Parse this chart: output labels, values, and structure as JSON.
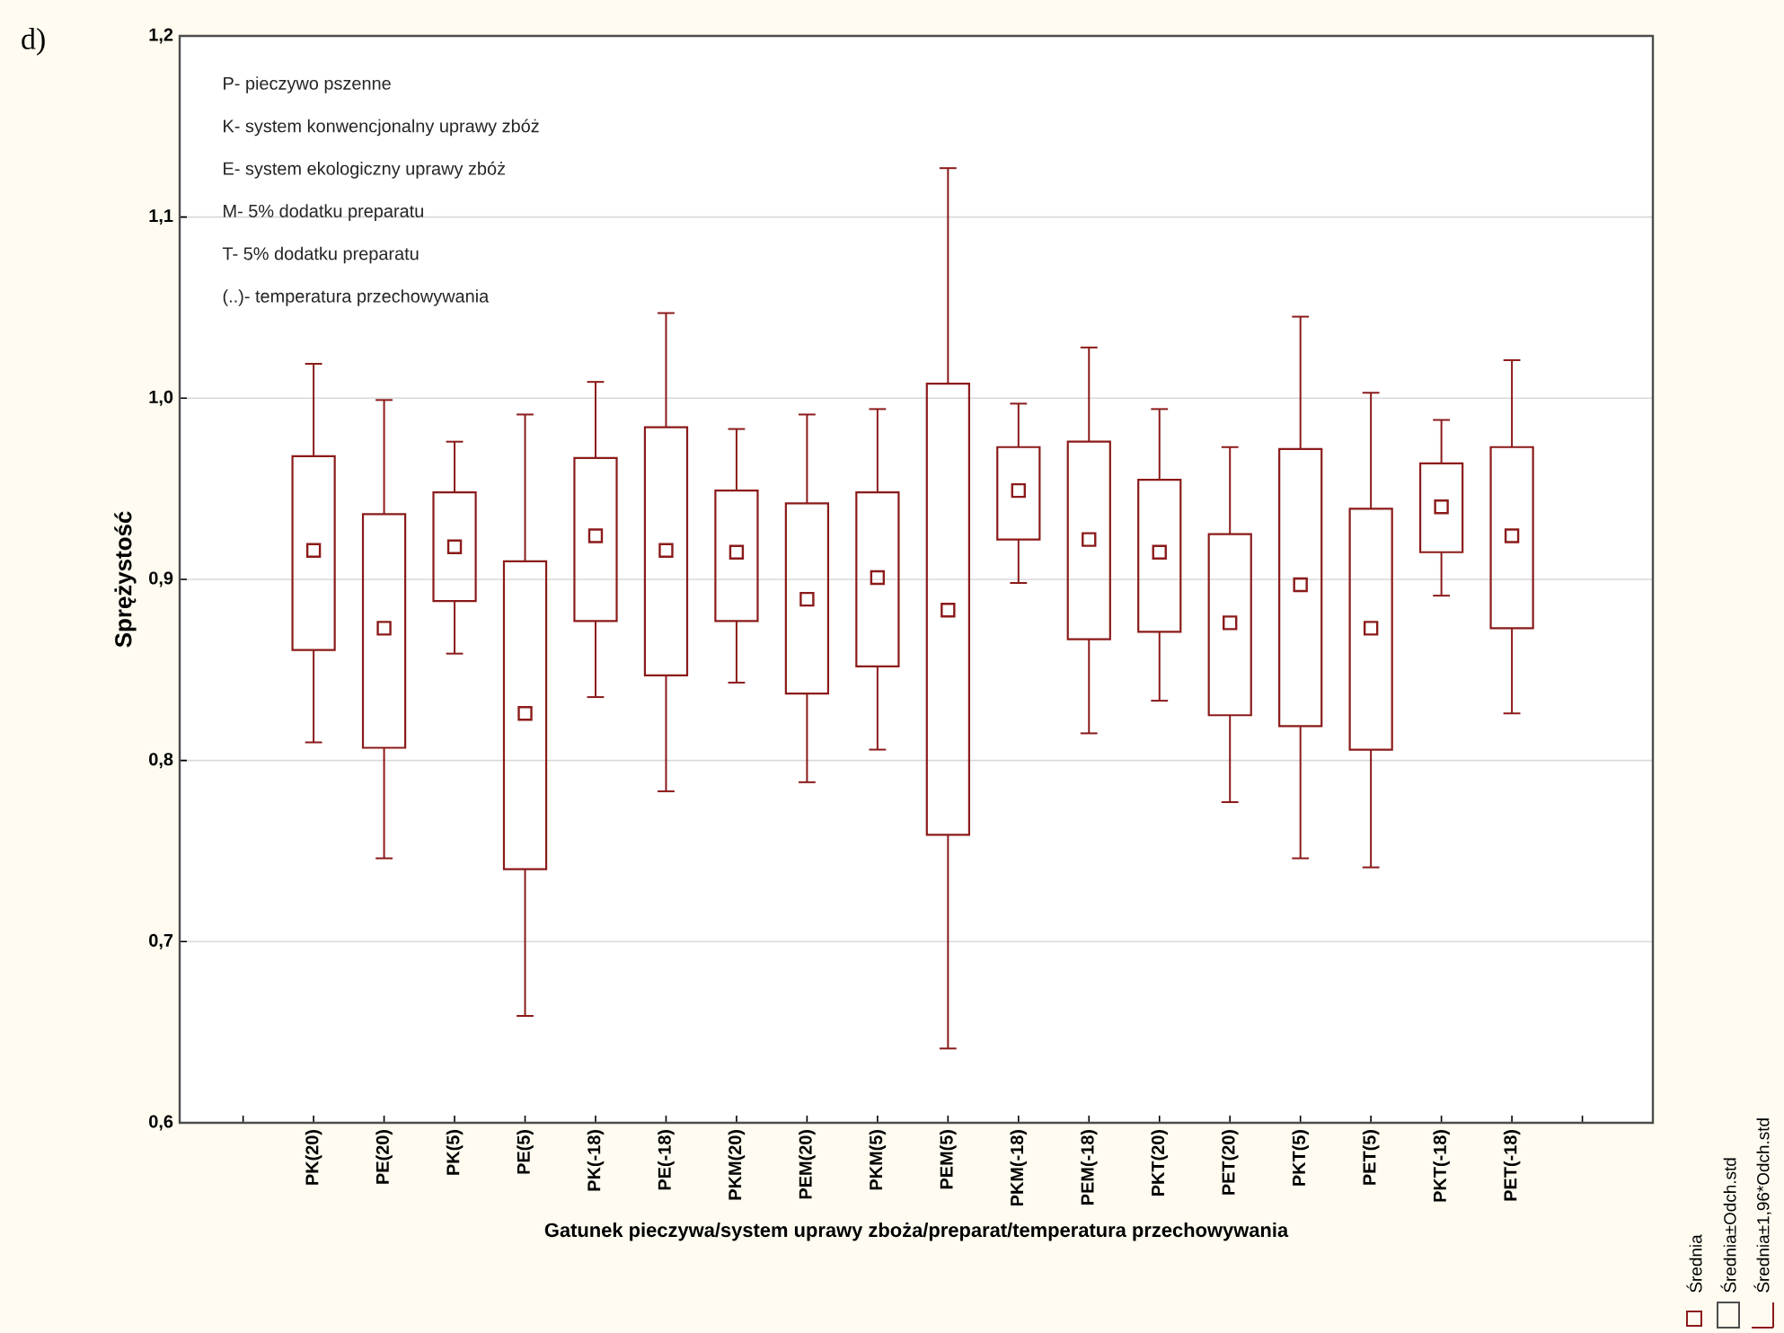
{
  "chart_data": {
    "type": "box",
    "xlabel": "Gatunek pieczywa/system uprawy zboża/preparat/temperatura przechowywania",
    "ylabel": "Sprężystość",
    "categories": [
      "PK(20)",
      "PE(20)",
      "PK(5)",
      "PE(5)",
      "PK(-18)",
      "PE(-18)",
      "PKM(20)",
      "PEM(20)",
      "PKM(5)",
      "PEM(5)",
      "PKM(-18)",
      "PEM(-18)",
      "PKT(20)",
      "PET(20)",
      "PKT(5)",
      "PET(5)",
      "PKT(-18)",
      "PET(-18)"
    ],
    "color": "#8b1a1a",
    "boxes": [
      {
        "low": 0.81,
        "q1": 0.861,
        "median": 0.916,
        "q3": 0.968,
        "high": 1.019
      },
      {
        "low": 0.746,
        "q1": 0.807,
        "median": 0.873,
        "q3": 0.936,
        "high": 0.999
      },
      {
        "low": 0.859,
        "q1": 0.888,
        "median": 0.918,
        "q3": 0.948,
        "high": 0.976
      },
      {
        "low": 0.659,
        "q1": 0.74,
        "median": 0.826,
        "q3": 0.91,
        "high": 0.991
      },
      {
        "low": 0.835,
        "q1": 0.877,
        "median": 0.924,
        "q3": 0.967,
        "high": 1.009
      },
      {
        "low": 0.783,
        "q1": 0.847,
        "median": 0.916,
        "q3": 0.984,
        "high": 1.047
      },
      {
        "low": 0.843,
        "q1": 0.877,
        "median": 0.915,
        "q3": 0.949,
        "high": 0.983
      },
      {
        "low": 0.788,
        "q1": 0.837,
        "median": 0.889,
        "q3": 0.942,
        "high": 0.991
      },
      {
        "low": 0.806,
        "q1": 0.852,
        "median": 0.901,
        "q3": 0.948,
        "high": 0.994
      },
      {
        "low": 0.641,
        "q1": 0.759,
        "median": 0.883,
        "q3": 1.008,
        "high": 1.127
      },
      {
        "low": 0.898,
        "q1": 0.922,
        "median": 0.949,
        "q3": 0.973,
        "high": 0.997
      },
      {
        "low": 0.815,
        "q1": 0.867,
        "median": 0.922,
        "q3": 0.976,
        "high": 1.028
      },
      {
        "low": 0.833,
        "q1": 0.871,
        "median": 0.915,
        "q3": 0.955,
        "high": 0.994
      },
      {
        "low": 0.777,
        "q1": 0.825,
        "median": 0.876,
        "q3": 0.925,
        "high": 0.973
      },
      {
        "low": 0.746,
        "q1": 0.819,
        "median": 0.897,
        "q3": 0.972,
        "high": 1.045
      },
      {
        "low": 0.741,
        "q1": 0.806,
        "median": 0.873,
        "q3": 0.939,
        "high": 1.003
      },
      {
        "low": 0.891,
        "q1": 0.915,
        "median": 0.94,
        "q3": 0.964,
        "high": 0.988
      },
      {
        "low": 0.826,
        "q1": 0.873,
        "median": 0.924,
        "q3": 0.973,
        "high": 1.021
      }
    ],
    "ylim": [
      0.6,
      1.2
    ],
    "yticks": [
      {
        "value": 0.6,
        "label": "0,6"
      },
      {
        "value": 0.7,
        "label": "0,7"
      },
      {
        "value": 0.8,
        "label": "0,8"
      },
      {
        "value": 0.9,
        "label": "0,9"
      },
      {
        "value": 1.0,
        "label": "1,0"
      },
      {
        "value": 1.1,
        "label": "1,1"
      },
      {
        "value": 1.2,
        "label": "1,2"
      }
    ],
    "grid": "y",
    "annotations": [
      "d)",
      "P- pieczywo pszenne",
      "K- system konwencjonalny uprawy zbóż",
      "E- system ekologiczny uprawy zbóż",
      "M- 5% dodatku preparatu",
      "T- 5% dodatku preparatu",
      "(..)- temperatura przechowywania",
      "Średnia",
      "Średnia±Odch.std",
      "Średnia±1,96*Odch.std"
    ]
  }
}
